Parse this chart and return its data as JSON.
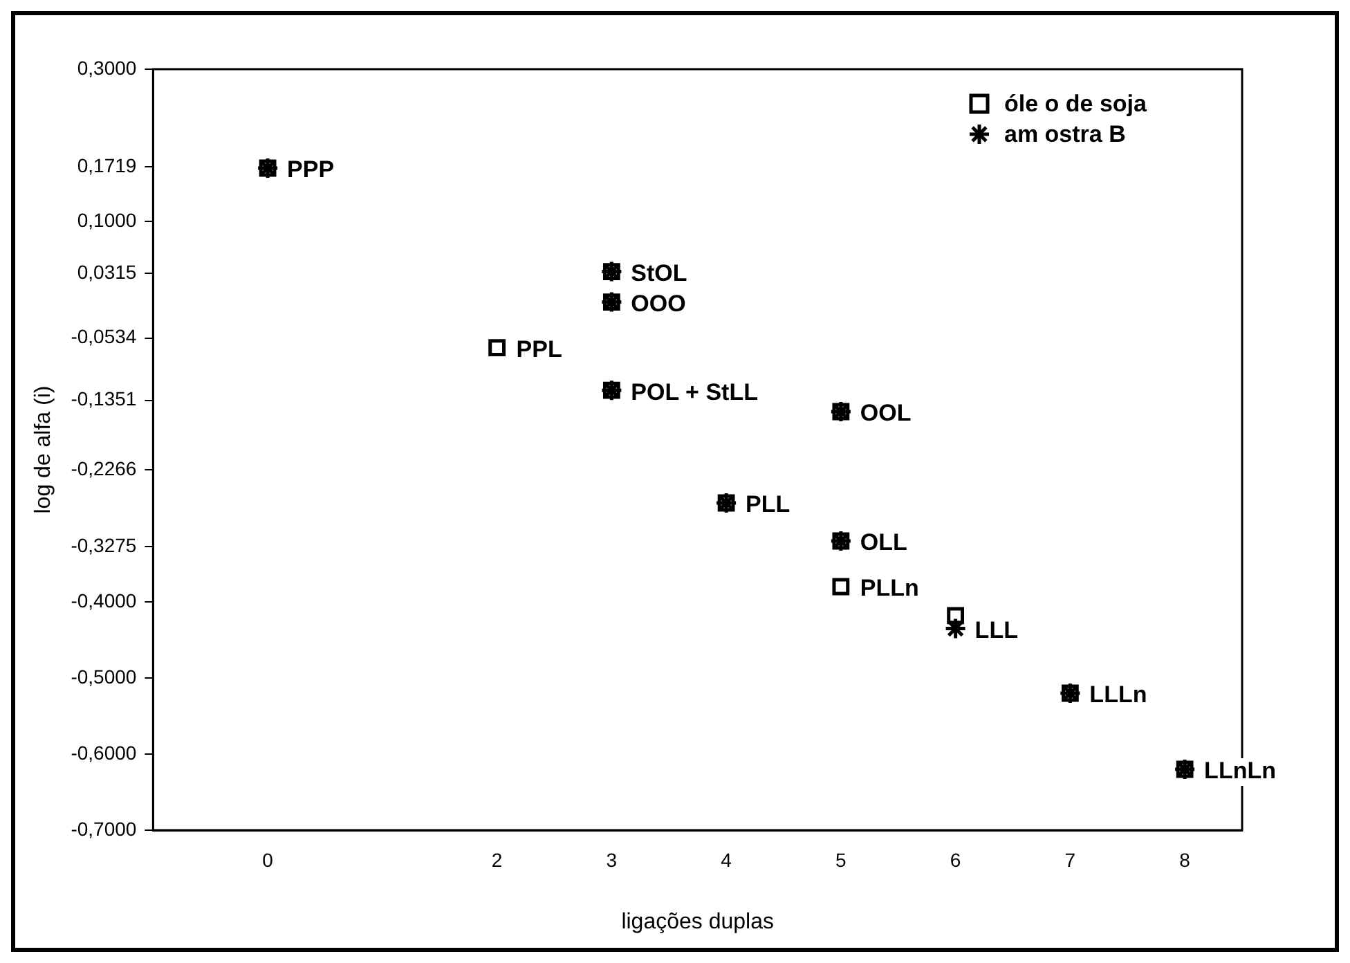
{
  "chart_data": {
    "type": "scatter",
    "xlabel": "ligações duplas",
    "ylabel": "log de alfa (i)",
    "series": [
      {
        "name": "óle o de soja",
        "color": "#000000",
        "marker": "square",
        "x": [
          0,
          3,
          3,
          2,
          3,
          5,
          4,
          5,
          5,
          6,
          7,
          8
        ],
        "values": [
          0.17,
          0.034,
          -0.006,
          -0.066,
          -0.122,
          -0.15,
          -0.27,
          -0.32,
          -0.38,
          -0.418,
          -0.52,
          -0.62
        ]
      },
      {
        "name": "am ostra B",
        "color": "#000000",
        "marker": "cross",
        "x": [
          0,
          3,
          3,
          3,
          5,
          4,
          5,
          6,
          7,
          8
        ],
        "values": [
          0.17,
          0.034,
          -0.006,
          -0.122,
          -0.15,
          -0.27,
          -0.32,
          -0.435,
          -0.52,
          -0.62
        ]
      }
    ],
    "annotations": [
      {
        "text": "PPP",
        "x": 0,
        "y": 0.17
      },
      {
        "text": "StOL",
        "x": 3,
        "y": 0.034
      },
      {
        "text": "OOO",
        "x": 3,
        "y": -0.006
      },
      {
        "text": "PPL",
        "x": 2,
        "y": -0.066
      },
      {
        "text": "POL + StLL",
        "x": 3,
        "y": -0.122
      },
      {
        "text": "OOL",
        "x": 5,
        "y": -0.15
      },
      {
        "text": "PLL",
        "x": 4,
        "y": -0.27
      },
      {
        "text": "OLL",
        "x": 5,
        "y": -0.32
      },
      {
        "text": "PLLn",
        "x": 5,
        "y": -0.38
      },
      {
        "text": "LLL",
        "x": 6,
        "y": -0.435
      },
      {
        "text": "LLLn",
        "x": 7,
        "y": -0.52
      },
      {
        "text": "LLnLn",
        "x": 8,
        "y": -0.62
      }
    ],
    "xlim": [
      -1,
      8.5
    ],
    "xticks": [
      0,
      2,
      3,
      4,
      5,
      6,
      7,
      8
    ],
    "ylim": [
      -0.7,
      0.3
    ],
    "yticks": [
      {
        "value": 0.3,
        "label": "0,3000"
      },
      {
        "value": 0.1719,
        "label": "0,1719"
      },
      {
        "value": 0.1,
        "label": "0,1000"
      },
      {
        "value": 0.0315,
        "label": "0,0315"
      },
      {
        "value": -0.0534,
        "label": "-0,0534"
      },
      {
        "value": -0.1351,
        "label": "-0,1351"
      },
      {
        "value": -0.2266,
        "label": "-0,2266"
      },
      {
        "value": -0.3275,
        "label": "-0,3275"
      },
      {
        "value": -0.4,
        "label": "-0,4000"
      },
      {
        "value": -0.5,
        "label": "-0,5000"
      },
      {
        "value": -0.6,
        "label": "-0,6000"
      },
      {
        "value": -0.7,
        "label": "-0,7000"
      }
    ],
    "grid": false,
    "legend": "top right"
  }
}
